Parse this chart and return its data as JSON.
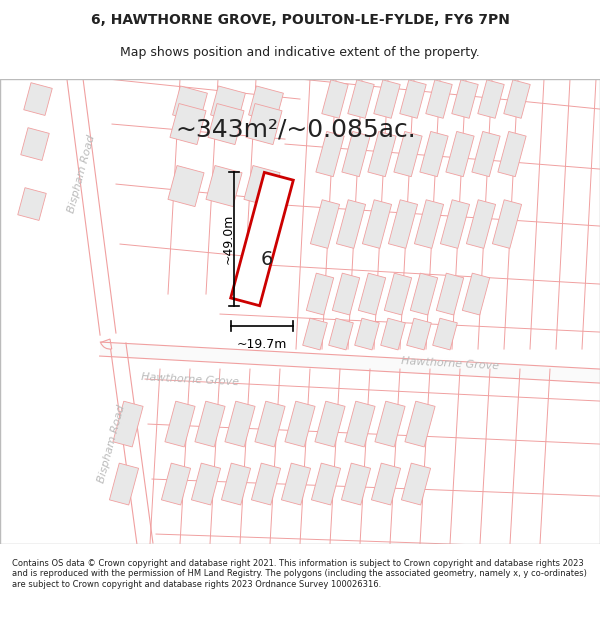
{
  "title_line1": "6, HAWTHORNE GROVE, POULTON-LE-FYLDE, FY6 7PN",
  "title_line2": "Map shows position and indicative extent of the property.",
  "area_text": "~343m²/~0.085ac.",
  "dim_height": "~49.0m",
  "dim_width": "~19.7m",
  "plot_number": "6",
  "footer_text": "Contains OS data © Crown copyright and database right 2021. This information is subject to Crown copyright and database rights 2023 and is reproduced with the permission of HM Land Registry. The polygons (including the associated geometry, namely x, y co-ordinates) are subject to Crown copyright and database rights 2023 Ordnance Survey 100026316.",
  "bg_color": "#ffffff",
  "map_bg_color": "#fafafa",
  "road_line_color": "#f0a0a0",
  "building_fill": "#e8e8e8",
  "building_edge": "#f0a0a0",
  "plot_fill": "#ffffff",
  "plot_edge": "#cc0000",
  "dim_color": "#000000",
  "text_color": "#222222",
  "road_text_color": "#bbbbbb",
  "title_fontsize": 10,
  "subtitle_fontsize": 9,
  "area_fontsize": 18,
  "dim_fontsize": 9,
  "road_fontsize": 8,
  "plot_label_fontsize": 14,
  "footer_fontsize": 6
}
